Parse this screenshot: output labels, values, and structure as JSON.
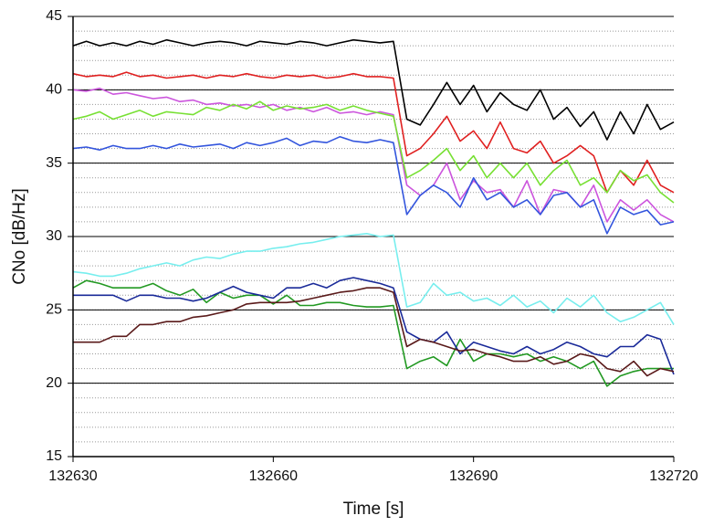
{
  "chart_data": {
    "type": "line",
    "x_label": "Time [s]",
    "y_label": "CNo [dB/Hz]",
    "x": [
      132630,
      132632,
      132634,
      132636,
      132638,
      132640,
      132642,
      132644,
      132646,
      132648,
      132650,
      132652,
      132654,
      132656,
      132658,
      132660,
      132662,
      132664,
      132666,
      132668,
      132670,
      132672,
      132674,
      132676,
      132678,
      132680,
      132682,
      132684,
      132686,
      132688,
      132690,
      132692,
      132694,
      132696,
      132698,
      132700,
      132702,
      132704,
      132706,
      132708,
      132710,
      132712,
      132714,
      132716,
      132718,
      132720
    ],
    "xlim": [
      132630,
      132720
    ],
    "xticks": [
      132630,
      132660,
      132690,
      132720
    ],
    "ylim": [
      15,
      45
    ],
    "yticks": [
      15,
      20,
      25,
      30,
      35,
      40,
      45
    ],
    "grid": true,
    "minor_grid": true,
    "series": [
      {
        "color": "#000000",
        "values": [
          43,
          43.3,
          43,
          43.2,
          43,
          43.3,
          43.1,
          43.4,
          43.2,
          43,
          43.2,
          43.3,
          43.2,
          43,
          43.3,
          43.2,
          43.1,
          43.3,
          43.2,
          43,
          43.2,
          43.4,
          43.3,
          43.2,
          43.3,
          38,
          37.6,
          39,
          40.5,
          39,
          40.3,
          38.5,
          39.8,
          39,
          38.6,
          40,
          38,
          38.8,
          37.5,
          38.5,
          36.6,
          38.5,
          37,
          39,
          37.3,
          37.8
        ]
      },
      {
        "color": "#e02020",
        "values": [
          41.1,
          40.9,
          41,
          40.9,
          41.2,
          40.9,
          41,
          40.8,
          40.9,
          41,
          40.8,
          41,
          40.9,
          41.1,
          40.9,
          40.8,
          41,
          40.9,
          41,
          40.8,
          40.9,
          41.1,
          40.9,
          40.9,
          40.8,
          35.5,
          36,
          37,
          38.2,
          36.5,
          37.2,
          36,
          37.8,
          36,
          35.7,
          36.5,
          35,
          35.5,
          36.2,
          35.5,
          33,
          34.5,
          33.5,
          35.2,
          33.5,
          33
        ]
      },
      {
        "color": "#cc55dd",
        "values": [
          40,
          39.9,
          40.1,
          39.7,
          39.8,
          39.6,
          39.4,
          39.5,
          39.2,
          39.3,
          39,
          39.1,
          38.9,
          39,
          38.8,
          39,
          38.6,
          38.8,
          38.5,
          38.8,
          38.4,
          38.5,
          38.3,
          38.5,
          38.3,
          33.5,
          32.8,
          33.5,
          35,
          32.5,
          33.8,
          33,
          33.2,
          32,
          33.8,
          31.5,
          33.2,
          33,
          32,
          33.5,
          31,
          32.5,
          31.8,
          32.5,
          31.5,
          31
        ]
      },
      {
        "color": "#77e033",
        "values": [
          38,
          38.2,
          38.5,
          38,
          38.3,
          38.6,
          38.2,
          38.5,
          38.4,
          38.3,
          38.8,
          38.6,
          39,
          38.7,
          39.2,
          38.6,
          38.9,
          38.7,
          38.8,
          39,
          38.6,
          38.9,
          38.6,
          38.4,
          38.2,
          34,
          34.5,
          35.2,
          36,
          34.5,
          35.5,
          34,
          35,
          34,
          35,
          33.5,
          34.5,
          35.2,
          33.5,
          34,
          33,
          34.5,
          33.8,
          34.2,
          33,
          32.3
        ]
      },
      {
        "color": "#3355dd",
        "values": [
          36,
          36.1,
          35.9,
          36.2,
          36,
          36,
          36.2,
          36,
          36.3,
          36.1,
          36.2,
          36.3,
          36,
          36.4,
          36.2,
          36.4,
          36.7,
          36.2,
          36.5,
          36.4,
          36.8,
          36.5,
          36.4,
          36.6,
          36.4,
          31.5,
          32.8,
          33.5,
          33,
          32,
          34,
          32.5,
          33,
          32,
          32.5,
          31.5,
          32.8,
          33,
          32,
          32.5,
          30.2,
          32,
          31.5,
          31.8,
          30.8,
          31
        ]
      },
      {
        "color": "#77eeee",
        "values": [
          27.6,
          27.5,
          27.3,
          27.3,
          27.5,
          27.8,
          28,
          28.2,
          28,
          28.4,
          28.6,
          28.5,
          28.8,
          29,
          29,
          29.2,
          29.3,
          29.5,
          29.6,
          29.8,
          30,
          30.1,
          30.2,
          30,
          30.1,
          25.2,
          25.5,
          26.8,
          26,
          26.2,
          25.6,
          25.8,
          25.3,
          26,
          25.2,
          25.6,
          24.8,
          25.8,
          25.2,
          26,
          24.8,
          24.2,
          24.5,
          25,
          25.5,
          24
        ]
      },
      {
        "color": "#229922",
        "values": [
          26.5,
          27,
          26.8,
          26.5,
          26.5,
          26.5,
          26.8,
          26.3,
          26,
          26.4,
          25.5,
          26.2,
          25.8,
          26,
          26,
          25.4,
          26,
          25.3,
          25.3,
          25.5,
          25.5,
          25.3,
          25.2,
          25.2,
          25.3,
          21,
          21.5,
          21.8,
          21.2,
          23,
          21.5,
          22,
          22,
          21.8,
          22,
          21.5,
          21.8,
          21.5,
          21,
          21.5,
          19.8,
          20.5,
          20.8,
          21,
          21,
          21
        ]
      },
      {
        "color": "#1a2a99",
        "values": [
          26,
          26,
          26,
          26,
          25.6,
          26,
          26,
          25.8,
          25.8,
          25.6,
          25.8,
          26.2,
          26.6,
          26.2,
          26,
          25.8,
          26.5,
          26.5,
          26.8,
          26.5,
          27,
          27.2,
          27,
          26.8,
          26.5,
          23.5,
          23,
          22.8,
          23.5,
          22,
          22.8,
          22.5,
          22.2,
          22,
          22.5,
          22,
          22.3,
          22.8,
          22.5,
          22,
          21.8,
          22.5,
          22.5,
          23.3,
          23,
          20.6
        ]
      },
      {
        "color": "#5a1a1a",
        "values": [
          22.8,
          22.8,
          22.8,
          23.2,
          23.2,
          24,
          24,
          24.2,
          24.2,
          24.5,
          24.6,
          24.8,
          25,
          25.4,
          25.5,
          25.5,
          25.5,
          25.6,
          25.8,
          26,
          26.2,
          26.3,
          26.5,
          26.5,
          26.2,
          22.5,
          23,
          22.8,
          22.5,
          22.2,
          22.3,
          22,
          21.8,
          21.5,
          21.5,
          21.8,
          21.3,
          21.5,
          22,
          21.8,
          21,
          20.8,
          21.5,
          20.5,
          21,
          20.8
        ]
      }
    ]
  }
}
